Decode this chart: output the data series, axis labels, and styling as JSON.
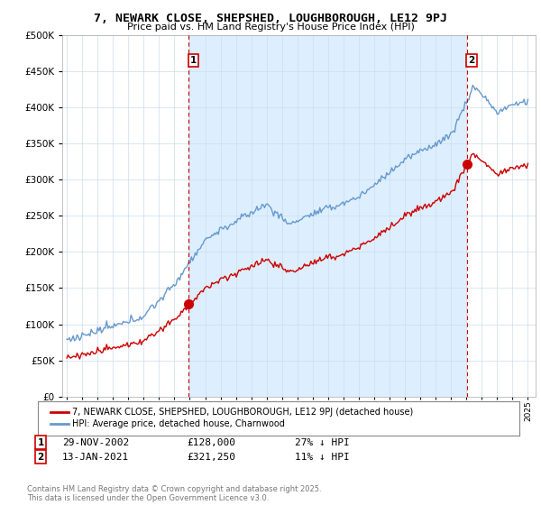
{
  "title": "7, NEWARK CLOSE, SHEPSHED, LOUGHBOROUGH, LE12 9PJ",
  "subtitle": "Price paid vs. HM Land Registry's House Price Index (HPI)",
  "legend_label_red": "7, NEWARK CLOSE, SHEPSHED, LOUGHBOROUGH, LE12 9PJ (detached house)",
  "legend_label_blue": "HPI: Average price, detached house, Charnwood",
  "annotation1_date": "29-NOV-2002",
  "annotation1_price": "£128,000",
  "annotation1_hpi": "27% ↓ HPI",
  "annotation2_date": "13-JAN-2021",
  "annotation2_price": "£321,250",
  "annotation2_hpi": "11% ↓ HPI",
  "copyright": "Contains HM Land Registry data © Crown copyright and database right 2025.\nThis data is licensed under the Open Government Licence v3.0.",
  "ylim": [
    0,
    500000
  ],
  "yticks": [
    0,
    50000,
    100000,
    150000,
    200000,
    250000,
    300000,
    350000,
    400000,
    450000,
    500000
  ],
  "sale1_year": 2002.92,
  "sale1_price": 128000,
  "sale2_year": 2021.04,
  "sale2_price": 321250,
  "red_color": "#cc0000",
  "blue_color": "#6699cc",
  "fill_color": "#ddeeff",
  "vline_color": "#cc0000",
  "background_color": "#ffffff",
  "grid_color": "#ccddee"
}
